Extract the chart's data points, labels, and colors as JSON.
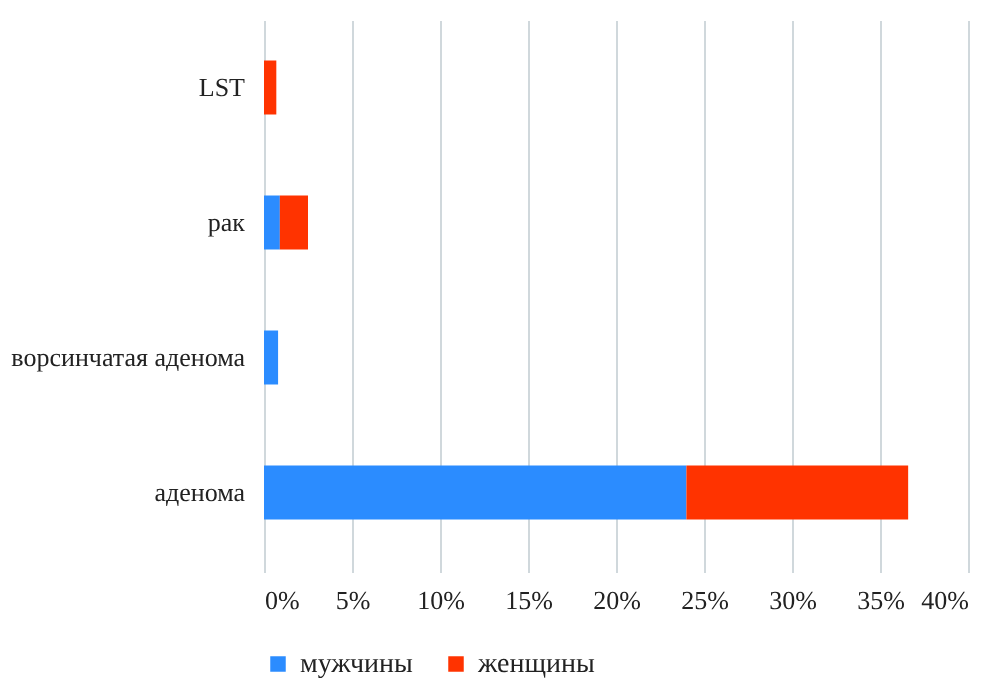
{
  "chart_data": {
    "type": "bar",
    "orientation": "horizontal",
    "stacked": true,
    "categories": [
      "LST",
      "рак",
      "ворсинчатая аденома",
      "аденома"
    ],
    "series": [
      {
        "name": "мужчины",
        "color": "#2b8cff",
        "values": [
          0,
          0.9,
          0.8,
          24
        ]
      },
      {
        "name": "женщины",
        "color": "#ff3300",
        "values": [
          0.7,
          1.6,
          0,
          12.6
        ]
      }
    ],
    "xlim": [
      0,
      40
    ],
    "xticks": [
      {
        "value": 0,
        "label": "0%"
      },
      {
        "value": 5,
        "label": "5%"
      },
      {
        "value": 10,
        "label": "10%"
      },
      {
        "value": 15,
        "label": "15%"
      },
      {
        "value": 20,
        "label": "20%"
      },
      {
        "value": 25,
        "label": "25%"
      },
      {
        "value": 30,
        "label": "30%"
      },
      {
        "value": 35,
        "label": "35%"
      },
      {
        "value": 40,
        "label": "40%"
      }
    ],
    "grid": "x",
    "legend": "bottom"
  }
}
